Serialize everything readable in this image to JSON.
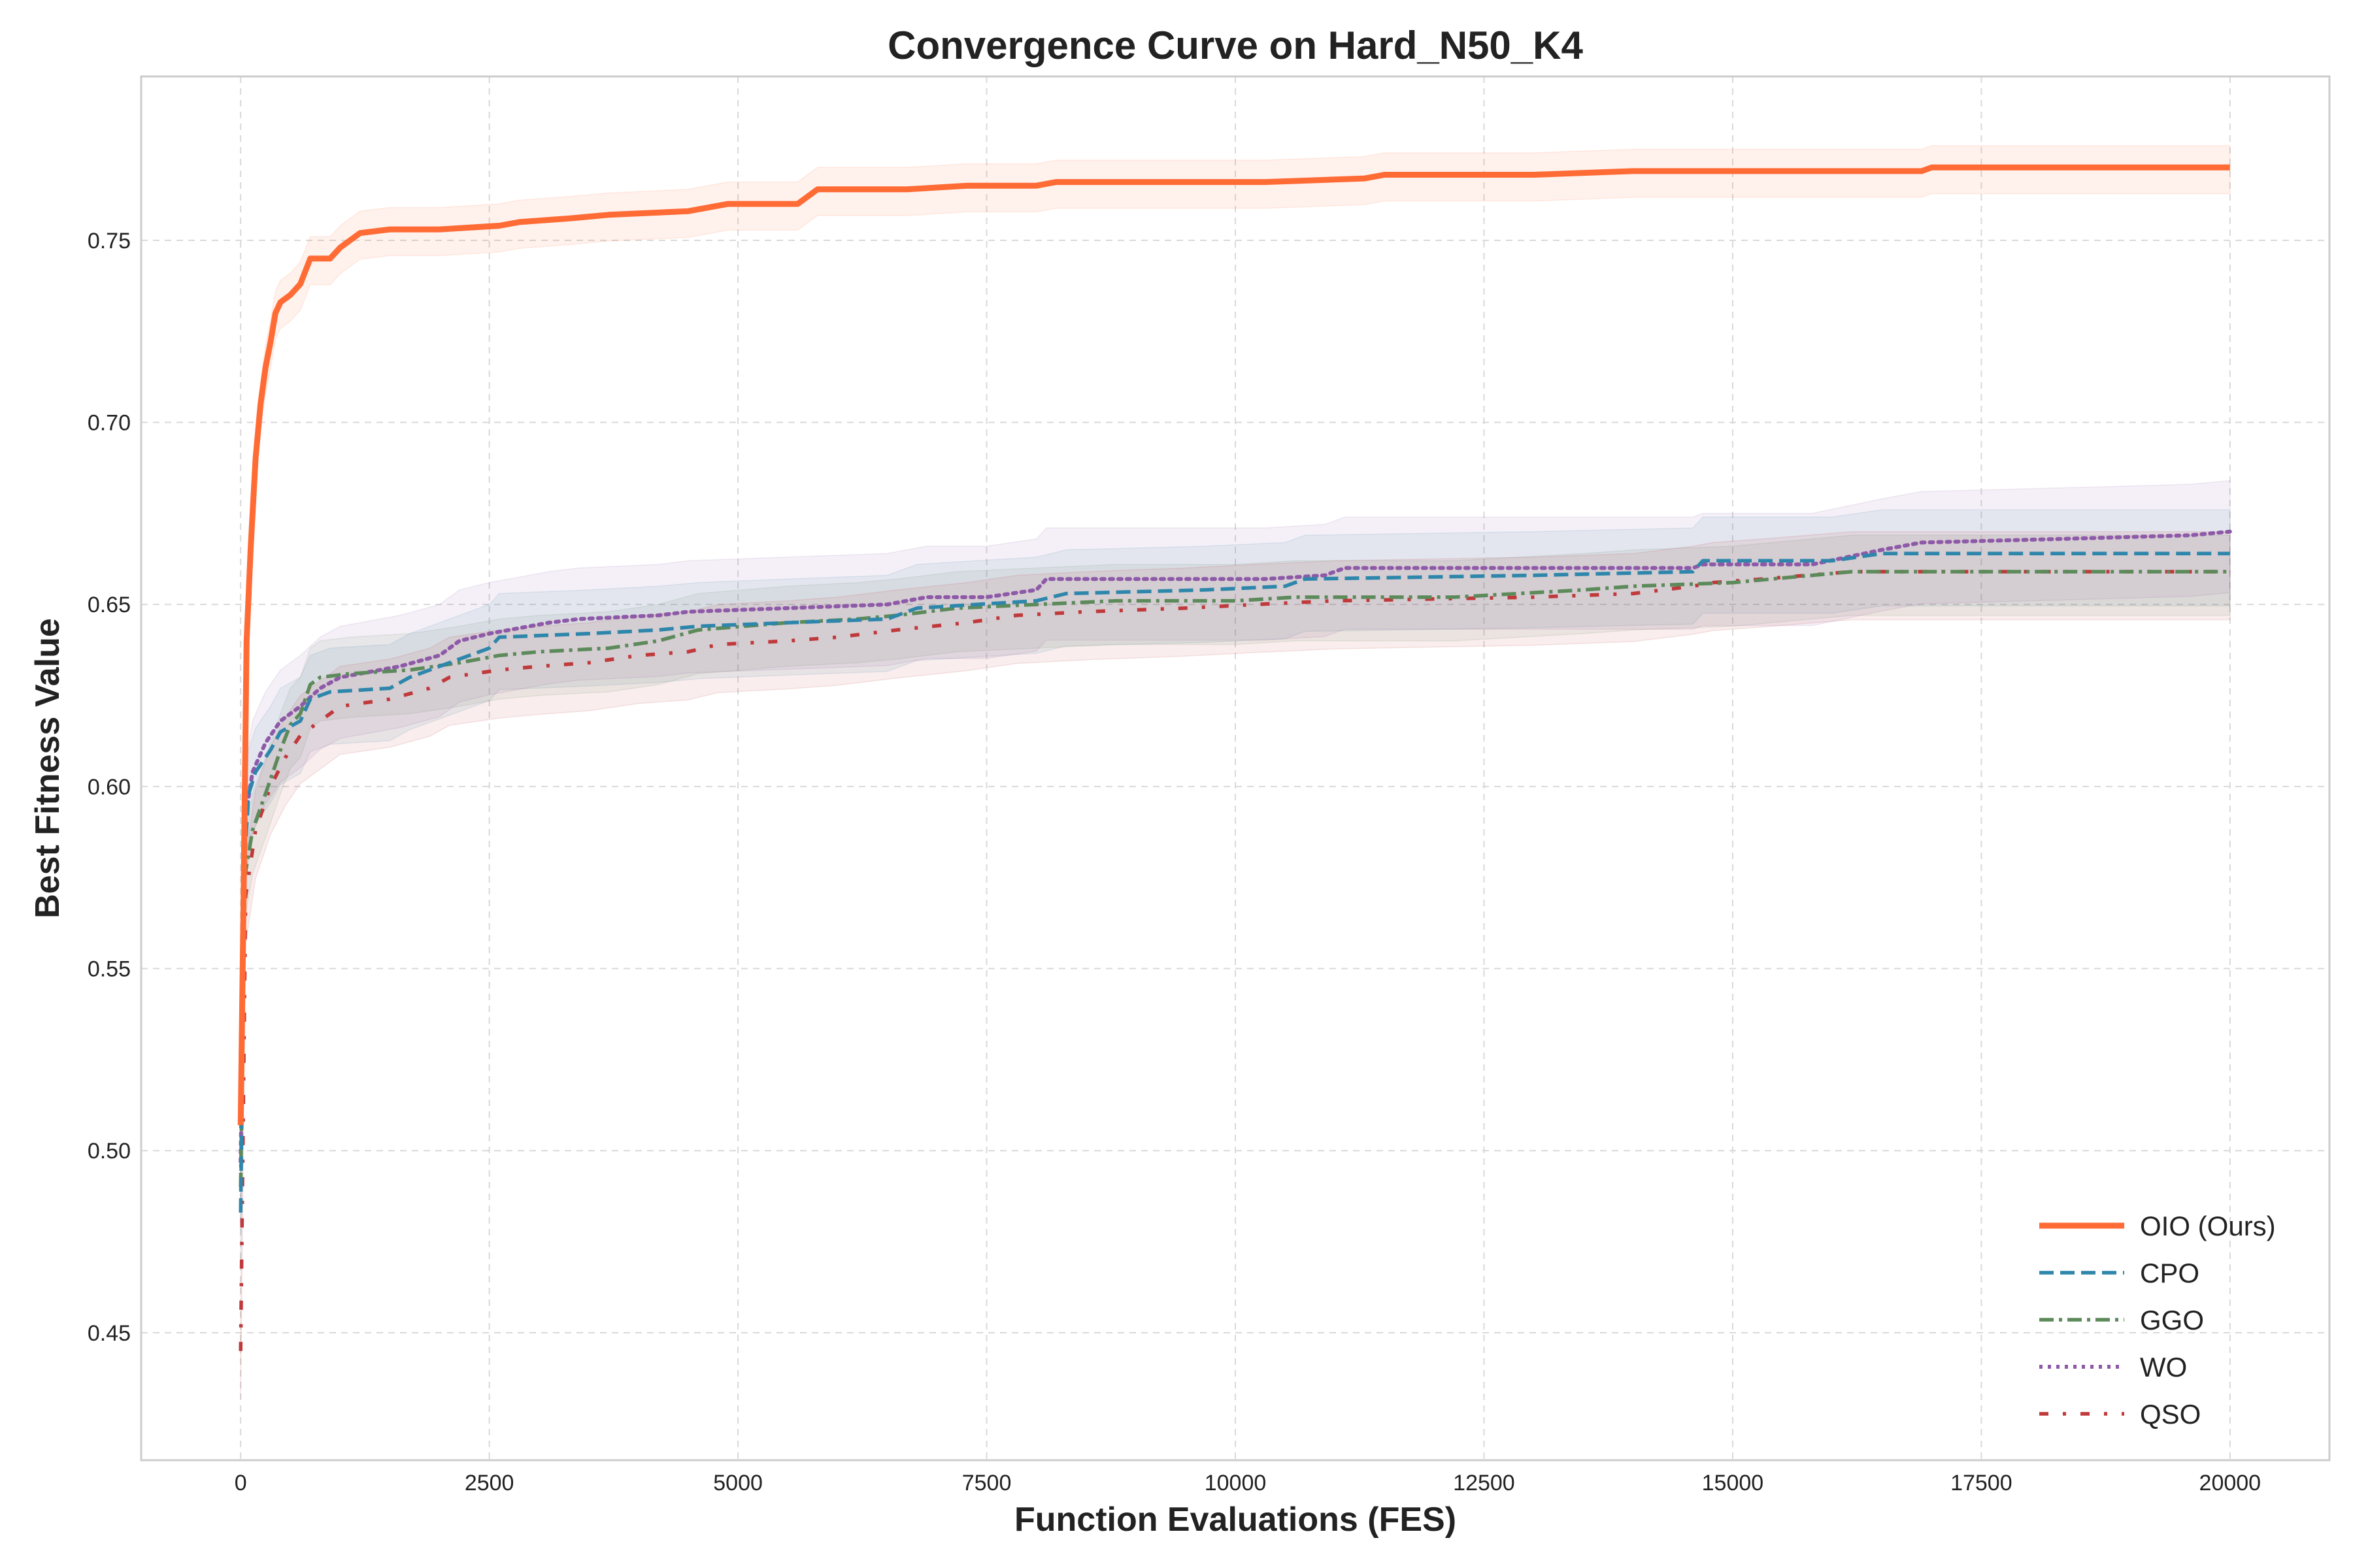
{
  "chart_data": {
    "type": "line",
    "title": "Convergence Curve on Hard_N50_K4",
    "xlabel": "Function Evaluations (FES)",
    "ylabel": "Best Fitness Value",
    "xlim": [
      -1000,
      21000
    ],
    "ylim": [
      0.415,
      0.795
    ],
    "x_ticks": [
      0,
      2500,
      5000,
      7500,
      10000,
      12500,
      15000,
      17500,
      20000
    ],
    "y_ticks": [
      0.45,
      0.5,
      0.55,
      0.6,
      0.65,
      0.7,
      0.75
    ],
    "x_tick_labels": [
      "0",
      "2500",
      "5000",
      "7500",
      "10000",
      "12500",
      "15000",
      "17500",
      "20000"
    ],
    "y_tick_labels": [
      "0.45",
      "0.50",
      "0.55",
      "0.60",
      "0.65",
      "0.70",
      "0.75"
    ],
    "grid": true,
    "legend_position": "bottom-right",
    "series": [
      {
        "name": "OIO (Ours)",
        "color": "#FF6B35",
        "style": "solid",
        "points": [
          [
            0,
            0.507
          ],
          [
            30,
            0.57
          ],
          [
            60,
            0.64
          ],
          [
            100,
            0.665
          ],
          [
            150,
            0.69
          ],
          [
            200,
            0.705
          ],
          [
            250,
            0.715
          ],
          [
            300,
            0.722
          ],
          [
            350,
            0.73
          ],
          [
            400,
            0.733
          ],
          [
            500,
            0.735
          ],
          [
            600,
            0.738
          ],
          [
            700,
            0.745
          ],
          [
            900,
            0.745
          ],
          [
            1000,
            0.748
          ],
          [
            1200,
            0.752
          ],
          [
            1500,
            0.753
          ],
          [
            2000,
            0.753
          ],
          [
            2600,
            0.754
          ],
          [
            2800,
            0.755
          ],
          [
            3300,
            0.756
          ],
          [
            3700,
            0.757
          ],
          [
            4500,
            0.758
          ],
          [
            4900,
            0.76
          ],
          [
            5600,
            0.76
          ],
          [
            5800,
            0.764
          ],
          [
            6700,
            0.764
          ],
          [
            7300,
            0.765
          ],
          [
            8000,
            0.765
          ],
          [
            8200,
            0.766
          ],
          [
            10300,
            0.766
          ],
          [
            11300,
            0.767
          ],
          [
            11500,
            0.768
          ],
          [
            13000,
            0.768
          ],
          [
            14000,
            0.769
          ],
          [
            16900,
            0.769
          ],
          [
            17000,
            0.77
          ],
          [
            20000,
            0.77
          ]
        ],
        "band": 0.006
      },
      {
        "name": "CPO",
        "color": "#2E86AB",
        "style": "dashed",
        "points": [
          [
            0,
            0.483
          ],
          [
            40,
            0.58
          ],
          [
            80,
            0.598
          ],
          [
            150,
            0.604
          ],
          [
            300,
            0.61
          ],
          [
            400,
            0.615
          ],
          [
            600,
            0.618
          ],
          [
            700,
            0.624
          ],
          [
            900,
            0.626
          ],
          [
            1500,
            0.627
          ],
          [
            1700,
            0.63
          ],
          [
            2000,
            0.633
          ],
          [
            2300,
            0.636
          ],
          [
            2500,
            0.638
          ],
          [
            2600,
            0.641
          ],
          [
            3500,
            0.642
          ],
          [
            4200,
            0.643
          ],
          [
            4600,
            0.644
          ],
          [
            5500,
            0.645
          ],
          [
            6500,
            0.646
          ],
          [
            6800,
            0.649
          ],
          [
            8000,
            0.651
          ],
          [
            8300,
            0.653
          ],
          [
            9700,
            0.654
          ],
          [
            10500,
            0.655
          ],
          [
            10700,
            0.657
          ],
          [
            13000,
            0.658
          ],
          [
            14600,
            0.659
          ],
          [
            14700,
            0.662
          ],
          [
            16000,
            0.662
          ],
          [
            16500,
            0.664
          ],
          [
            20000,
            0.664
          ]
        ],
        "band": 0.012
      },
      {
        "name": "GGO",
        "color": "#5C8A5A",
        "style": "dashdot",
        "points": [
          [
            0,
            0.49
          ],
          [
            40,
            0.575
          ],
          [
            120,
            0.588
          ],
          [
            250,
            0.598
          ],
          [
            400,
            0.61
          ],
          [
            500,
            0.617
          ],
          [
            600,
            0.62
          ],
          [
            700,
            0.628
          ],
          [
            800,
            0.63
          ],
          [
            1100,
            0.631
          ],
          [
            1700,
            0.632
          ],
          [
            2200,
            0.634
          ],
          [
            2600,
            0.636
          ],
          [
            3000,
            0.637
          ],
          [
            3700,
            0.638
          ],
          [
            4200,
            0.64
          ],
          [
            4600,
            0.643
          ],
          [
            5500,
            0.645
          ],
          [
            6200,
            0.646
          ],
          [
            6600,
            0.647
          ],
          [
            7200,
            0.649
          ],
          [
            8000,
            0.65
          ],
          [
            8800,
            0.651
          ],
          [
            10000,
            0.651
          ],
          [
            10600,
            0.652
          ],
          [
            12200,
            0.652
          ],
          [
            13500,
            0.654
          ],
          [
            14000,
            0.655
          ],
          [
            15000,
            0.656
          ],
          [
            16200,
            0.659
          ],
          [
            20000,
            0.659
          ]
        ],
        "band": 0.01
      },
      {
        "name": "WO",
        "color": "#8E5AA8",
        "style": "dotted",
        "points": [
          [
            0,
            0.497
          ],
          [
            50,
            0.592
          ],
          [
            120,
            0.604
          ],
          [
            250,
            0.612
          ],
          [
            400,
            0.618
          ],
          [
            600,
            0.622
          ],
          [
            800,
            0.627
          ],
          [
            1000,
            0.63
          ],
          [
            1600,
            0.633
          ],
          [
            2000,
            0.636
          ],
          [
            2200,
            0.64
          ],
          [
            2500,
            0.642
          ],
          [
            3100,
            0.645
          ],
          [
            3400,
            0.646
          ],
          [
            4200,
            0.647
          ],
          [
            4500,
            0.648
          ],
          [
            5500,
            0.649
          ],
          [
            6500,
            0.65
          ],
          [
            6900,
            0.652
          ],
          [
            7500,
            0.652
          ],
          [
            8000,
            0.654
          ],
          [
            8100,
            0.657
          ],
          [
            10300,
            0.657
          ],
          [
            10900,
            0.658
          ],
          [
            11100,
            0.66
          ],
          [
            14600,
            0.66
          ],
          [
            14700,
            0.661
          ],
          [
            15800,
            0.661
          ],
          [
            16500,
            0.665
          ],
          [
            16900,
            0.667
          ],
          [
            18300,
            0.668
          ],
          [
            19600,
            0.669
          ],
          [
            20000,
            0.67
          ]
        ],
        "band": 0.014
      },
      {
        "name": "QSO",
        "color": "#C0393B",
        "style": "dashdotsparse",
        "points": [
          [
            0,
            0.445
          ],
          [
            50,
            0.57
          ],
          [
            150,
            0.588
          ],
          [
            300,
            0.6
          ],
          [
            450,
            0.608
          ],
          [
            600,
            0.614
          ],
          [
            800,
            0.618
          ],
          [
            1000,
            0.622
          ],
          [
            1500,
            0.624
          ],
          [
            1900,
            0.627
          ],
          [
            2100,
            0.63
          ],
          [
            2600,
            0.632
          ],
          [
            3000,
            0.633
          ],
          [
            3500,
            0.634
          ],
          [
            4000,
            0.636
          ],
          [
            4500,
            0.637
          ],
          [
            4800,
            0.639
          ],
          [
            5500,
            0.64
          ],
          [
            6000,
            0.641
          ],
          [
            6600,
            0.643
          ],
          [
            7300,
            0.645
          ],
          [
            7800,
            0.647
          ],
          [
            8500,
            0.648
          ],
          [
            9500,
            0.649
          ],
          [
            10200,
            0.65
          ],
          [
            11000,
            0.651
          ],
          [
            13000,
            0.652
          ],
          [
            14000,
            0.653
          ],
          [
            14600,
            0.655
          ],
          [
            14800,
            0.656
          ],
          [
            15300,
            0.657
          ],
          [
            16200,
            0.659
          ],
          [
            20000,
            0.659
          ]
        ],
        "band": 0.011
      }
    ]
  }
}
